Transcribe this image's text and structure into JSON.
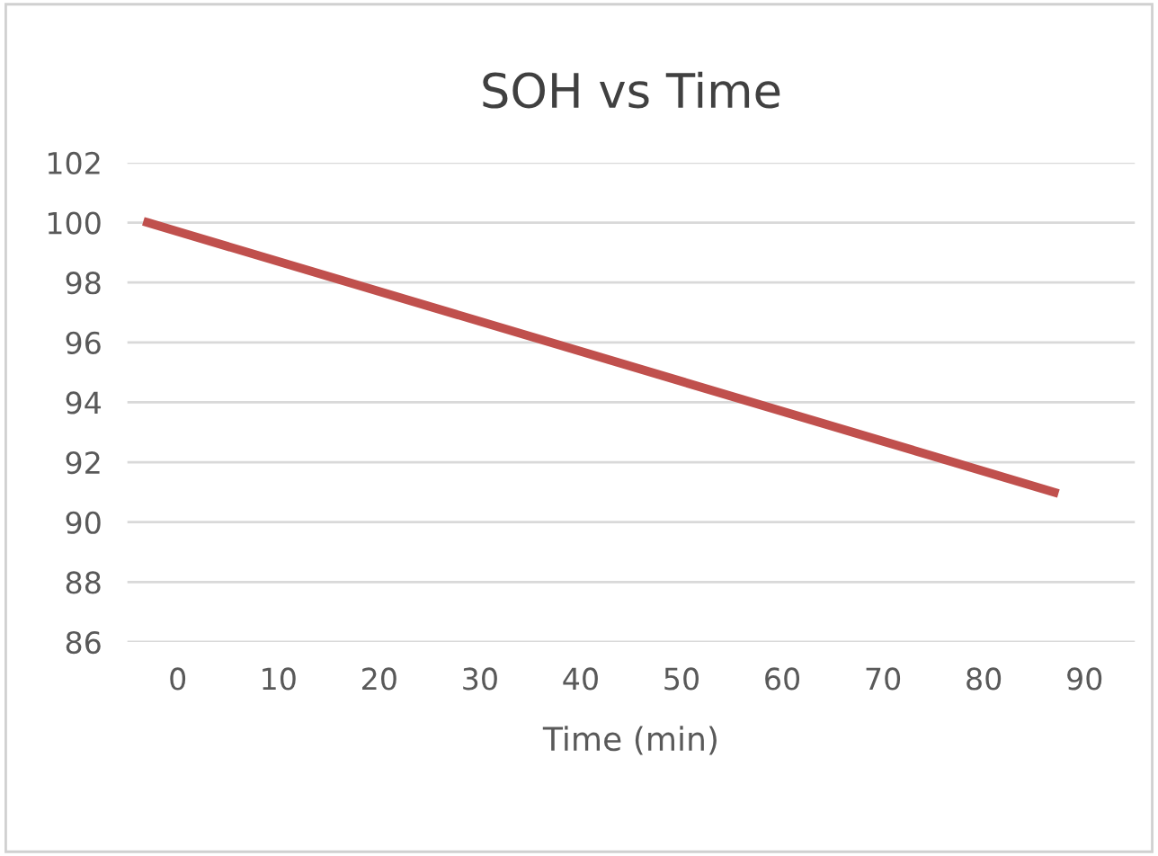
{
  "chart_data": {
    "type": "line",
    "title": "SOH vs Time",
    "xlabel": "Time (min)",
    "x": [
      -3,
      87
    ],
    "series": [
      {
        "color": "#c0504d",
        "values": [
          100,
          91
        ]
      }
    ],
    "xlim": [
      -5,
      95
    ],
    "xticks": [
      0,
      10,
      20,
      30,
      40,
      50,
      60,
      70,
      80,
      90
    ],
    "ylim": [
      86,
      102
    ],
    "yticks": [
      86,
      88,
      90,
      92,
      94,
      96,
      98,
      100,
      102
    ],
    "grid": "y",
    "legend": false,
    "marker": "none",
    "line_style": "solid"
  }
}
